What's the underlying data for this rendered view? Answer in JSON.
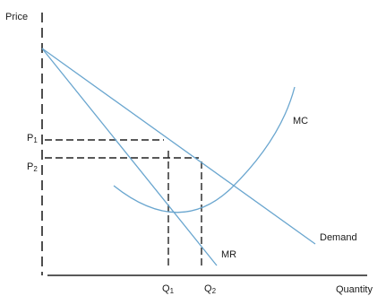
{
  "chart_data": {
    "type": "line",
    "title": "",
    "ylabel": "Price",
    "xlabel": "Quantity",
    "price_levels": [
      {
        "name": "P1",
        "main": "P",
        "sub": "1"
      },
      {
        "name": "P2",
        "main": "P",
        "sub": "2"
      }
    ],
    "quantity_levels": [
      {
        "name": "Q1",
        "main": "Q",
        "sub": "1"
      },
      {
        "name": "Q2",
        "main": "Q",
        "sub": "2"
      }
    ],
    "series": [
      {
        "name": "Demand",
        "label": "Demand"
      },
      {
        "name": "MR",
        "label": "MR"
      },
      {
        "name": "MC",
        "label": "MC"
      }
    ],
    "colors": {
      "curves": "#6aa6cf",
      "axes": "#222222",
      "guides": "#222222"
    }
  }
}
